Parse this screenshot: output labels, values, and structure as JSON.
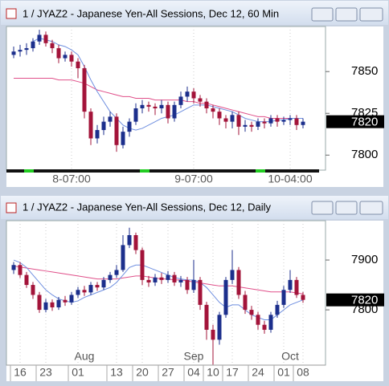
{
  "chart_data": [
    {
      "type": "candlestick",
      "title": "1 / JYAZ2 - Japanese Yen-All Sessions, Dec 12, 60 Min",
      "categories": [
        null,
        null,
        null,
        null,
        null,
        null,
        null,
        null,
        null,
        "8-07:00",
        null,
        null,
        null,
        null,
        null,
        null,
        null,
        null,
        null,
        null,
        null,
        null,
        null,
        null,
        null,
        null,
        null,
        null,
        "9-07:00",
        null,
        null,
        null,
        null,
        null,
        null,
        null,
        null,
        null,
        null,
        null,
        null,
        null,
        null,
        "10-04:00",
        null,
        null
      ],
      "open": [
        7860,
        7862,
        7863,
        7864,
        7868,
        7872,
        7867,
        7864,
        7858,
        7860,
        7856,
        7852,
        7826,
        7810,
        7815,
        7820,
        7823,
        7806,
        7814,
        7820,
        7828,
        7830,
        7829,
        7828,
        7830,
        7822,
        7830,
        7835,
        7838,
        7834,
        7832,
        7828,
        7826,
        7822,
        7820,
        7824,
        7817,
        7818,
        7817,
        7820,
        7819,
        7822,
        7820,
        7821,
        7822,
        7818
      ],
      "high": [
        7865,
        7866,
        7867,
        7870,
        7875,
        7874,
        7869,
        7866,
        7862,
        7862,
        7858,
        7854,
        7828,
        7818,
        7823,
        7826,
        7825,
        7817,
        7822,
        7831,
        7833,
        7832,
        7831,
        7833,
        7832,
        7832,
        7838,
        7841,
        7840,
        7836,
        7834,
        7830,
        7828,
        7824,
        7826,
        7826,
        7821,
        7820,
        7822,
        7822,
        7824,
        7824,
        7823,
        7824,
        7824,
        7822
      ],
      "low": [
        7858,
        7859,
        7860,
        7862,
        7866,
        7865,
        7861,
        7855,
        7856,
        7853,
        7846,
        7822,
        7806,
        7807,
        7812,
        7817,
        7802,
        7804,
        7811,
        7818,
        7825,
        7826,
        7824,
        7825,
        7819,
        7820,
        7828,
        7832,
        7831,
        7829,
        7825,
        7822,
        7818,
        7816,
        7816,
        7812,
        7814,
        7814,
        7815,
        7816,
        7817,
        7817,
        7818,
        7818,
        7815,
        7816
      ],
      "close": [
        7862,
        7863,
        7864,
        7868,
        7872,
        7867,
        7864,
        7858,
        7860,
        7856,
        7852,
        7826,
        7810,
        7815,
        7820,
        7823,
        7806,
        7814,
        7820,
        7828,
        7830,
        7829,
        7828,
        7830,
        7822,
        7830,
        7835,
        7838,
        7834,
        7832,
        7828,
        7826,
        7822,
        7820,
        7824,
        7817,
        7818,
        7817,
        7820,
        7819,
        7822,
        7820,
        7821,
        7822,
        7818,
        7820
      ],
      "up_color": "#1c2f8c",
      "down_color": "#a3143a",
      "series": [
        {
          "color": "#e0508a",
          "values": [
            7846,
            7846,
            7846,
            7846,
            7846,
            7846,
            7846,
            7845,
            7845,
            7845,
            7844,
            7843,
            7841,
            7839,
            7838,
            7837,
            7836,
            7835,
            7835,
            7834,
            7834,
            7834,
            7833,
            7833,
            7833,
            7833,
            7833,
            7832,
            7832,
            7831,
            7831,
            7830,
            7829,
            7828,
            7827,
            7826,
            7825,
            7824,
            7823,
            7823,
            7822,
            7822,
            7822,
            7822,
            7822,
            7822
          ]
        },
        {
          "color": "#6f8fe0",
          "values": [
            null,
            null,
            null,
            7868,
            7870,
            7869,
            7868,
            7866,
            7865,
            7863,
            7860,
            7853,
            7845,
            7838,
            7832,
            7826,
            7822,
            7818,
            7816,
            7815,
            7816,
            7818,
            7820,
            7822,
            7823,
            7824,
            7826,
            7828,
            7830,
            7830,
            7830,
            7829,
            7828,
            7827,
            7826,
            7824,
            7822,
            7821,
            7820,
            7820,
            7820,
            7821,
            7821,
            7822,
            7822,
            7822
          ]
        }
      ],
      "ylim": [
        7791,
        7877
      ],
      "yticks": [
        7800,
        7825,
        7850
      ],
      "last_price": 7820
    },
    {
      "type": "candlestick",
      "title": "1 / JYAZ2 - Japanese Yen-All Sessions, Dec 12, Daily",
      "categories": [
        null,
        "16",
        null,
        null,
        null,
        "23",
        null,
        null,
        null,
        null,
        "01",
        null,
        null,
        null,
        null,
        null,
        "13",
        null,
        null,
        null,
        "20",
        null,
        null,
        null,
        "27",
        null,
        null,
        null,
        "04",
        null,
        null,
        "10",
        null,
        null,
        "17",
        null,
        null,
        null,
        "24",
        null,
        null,
        null,
        "01",
        null,
        null,
        "08"
      ],
      "month_labels": [
        null,
        null,
        null,
        null,
        null,
        null,
        null,
        null,
        null,
        null,
        null,
        "Aug",
        null,
        null,
        null,
        null,
        null,
        null,
        null,
        null,
        null,
        null,
        null,
        null,
        null,
        null,
        null,
        null,
        "Sep",
        null,
        null,
        null,
        null,
        null,
        null,
        null,
        null,
        null,
        null,
        null,
        null,
        null,
        null,
        "Oct",
        null,
        null
      ],
      "open": [
        7880,
        7890,
        7870,
        7850,
        7830,
        7800,
        7815,
        7805,
        7820,
        7815,
        7830,
        7840,
        7835,
        7850,
        7845,
        7860,
        7870,
        7880,
        7930,
        7950,
        7920,
        7860,
        7855,
        7865,
        7860,
        7870,
        7855,
        7860,
        7840,
        7860,
        7810,
        7760,
        7740,
        7790,
        7860,
        7880,
        7830,
        7800,
        7790,
        7770,
        7760,
        7790,
        7810,
        7840,
        7860,
        7830
      ],
      "high": [
        7896,
        7896,
        7876,
        7856,
        7836,
        7822,
        7821,
        7826,
        7828,
        7836,
        7846,
        7848,
        7856,
        7856,
        7866,
        7876,
        7890,
        7950,
        7965,
        7955,
        7925,
        7868,
        7872,
        7874,
        7878,
        7876,
        7868,
        7866,
        7900,
        7866,
        7816,
        7770,
        7796,
        7866,
        7920,
        7886,
        7838,
        7808,
        7796,
        7778,
        7796,
        7818,
        7848,
        7880,
        7866,
        7836
      ],
      "low": [
        7872,
        7864,
        7844,
        7822,
        7794,
        7795,
        7798,
        7800,
        7808,
        7810,
        7824,
        7828,
        7830,
        7838,
        7840,
        7854,
        7864,
        7876,
        7924,
        7912,
        7850,
        7846,
        7848,
        7852,
        7854,
        7848,
        7846,
        7832,
        7834,
        7800,
        7740,
        7690,
        7730,
        7784,
        7852,
        7822,
        7792,
        7780,
        7760,
        7752,
        7754,
        7784,
        7804,
        7834,
        7824,
        7814
      ],
      "close": [
        7890,
        7870,
        7850,
        7830,
        7800,
        7815,
        7805,
        7820,
        7815,
        7830,
        7840,
        7835,
        7850,
        7845,
        7860,
        7870,
        7880,
        7930,
        7950,
        7920,
        7860,
        7855,
        7865,
        7860,
        7870,
        7855,
        7860,
        7840,
        7860,
        7810,
        7760,
        7740,
        7790,
        7860,
        7880,
        7830,
        7800,
        7790,
        7770,
        7760,
        7790,
        7810,
        7840,
        7860,
        7830,
        7820
      ],
      "up_color": "#1c2f8c",
      "down_color": "#a3143a",
      "series": [
        {
          "color": "#e0508a",
          "values": [
            7888,
            7886,
            7884,
            7882,
            7880,
            7878,
            7876,
            7874,
            7872,
            7870,
            7868,
            7866,
            7864,
            7862,
            7862,
            7862,
            7862,
            7864,
            7866,
            7868,
            7868,
            7866,
            7864,
            7862,
            7862,
            7860,
            7860,
            7858,
            7856,
            7854,
            7852,
            7850,
            7848,
            7848,
            7848,
            7846,
            7844,
            7842,
            7840,
            7838,
            7836,
            7836,
            7836,
            7836,
            7834,
            7832
          ]
        },
        {
          "color": "#6f8fe0",
          "values": [
            7900,
            7895,
            7885,
            7870,
            7855,
            7840,
            7830,
            7822,
            7818,
            7815,
            7818,
            7825,
            7830,
            7835,
            7840,
            7845,
            7855,
            7870,
            7885,
            7890,
            7890,
            7885,
            7880,
            7875,
            7870,
            7865,
            7862,
            7860,
            7860,
            7855,
            7845,
            7830,
            7815,
            7805,
            7810,
            7810,
            7800,
            7790,
            7785,
            7780,
            7780,
            7790,
            7800,
            7810,
            7815,
            7820
          ]
        }
      ],
      "ylim": [
        7689,
        7979
      ],
      "yticks": [
        7800,
        7900
      ],
      "last_price": 7820
    }
  ]
}
